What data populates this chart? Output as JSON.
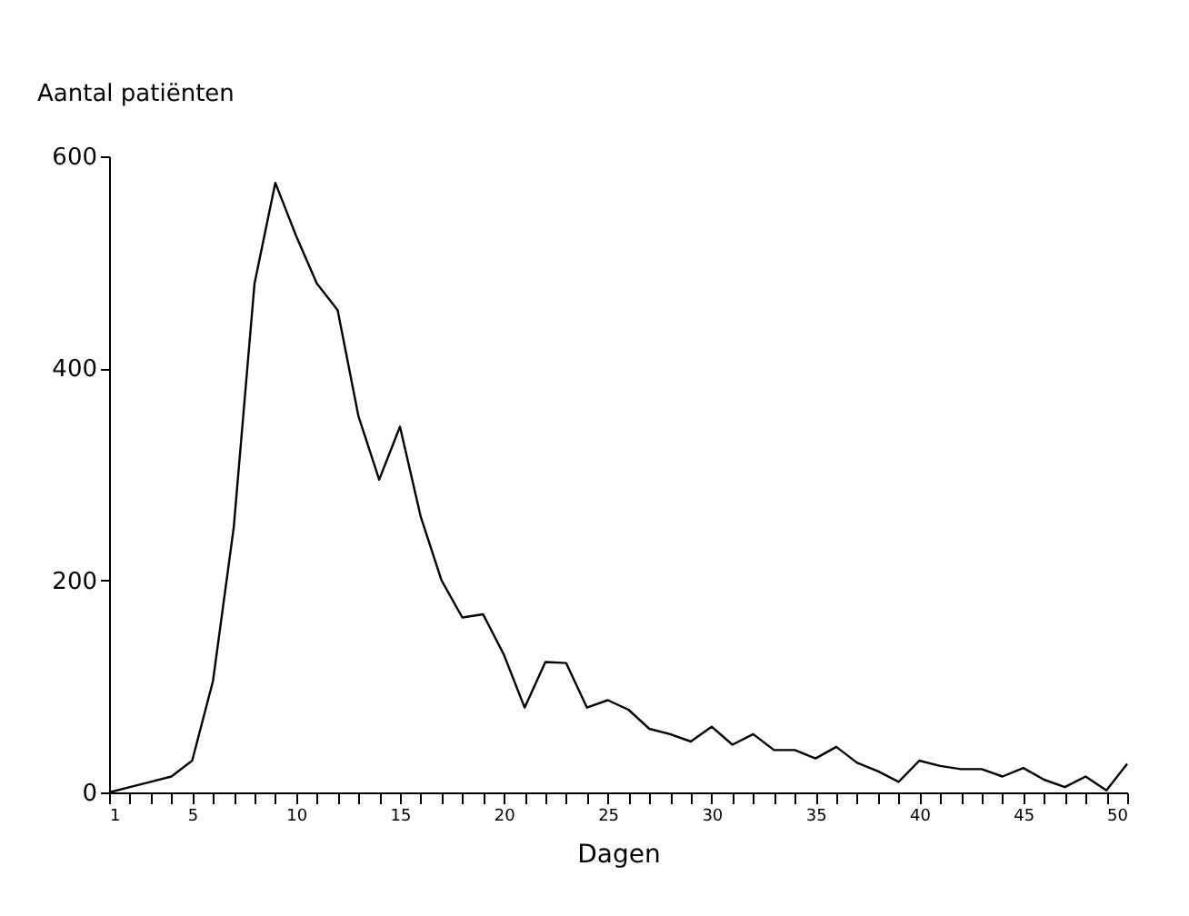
{
  "chart_data": {
    "type": "line",
    "xlabel": "Dagen",
    "ylabel": "Aantal patiënten",
    "x": [
      1,
      2,
      3,
      4,
      5,
      6,
      7,
      8,
      9,
      10,
      11,
      12,
      13,
      14,
      15,
      16,
      17,
      18,
      19,
      20,
      21,
      22,
      23,
      24,
      25,
      26,
      27,
      28,
      29,
      30,
      31,
      32,
      33,
      34,
      35,
      36,
      37,
      38,
      39,
      40,
      41,
      42,
      43,
      44,
      45,
      46,
      47,
      48,
      49,
      50
    ],
    "series": [
      {
        "color": "#000000",
        "values": [
          0,
          5,
          10,
          15,
          30,
          105,
          250,
          480,
          575,
          525,
          480,
          455,
          355,
          295,
          345,
          260,
          200,
          165,
          168,
          130,
          80,
          123,
          122,
          80,
          87,
          78,
          60,
          55,
          48,
          62,
          45,
          55,
          40,
          40,
          32,
          43,
          28,
          20,
          10,
          30,
          25,
          22,
          22,
          15,
          23,
          12,
          5,
          15,
          2,
          27
        ]
      }
    ],
    "xlim": [
      1,
      50
    ],
    "xticks": [
      1,
      {
        "value": 2,
        "label": null
      },
      {
        "value": 3,
        "label": null
      },
      {
        "value": 4,
        "label": null
      },
      5,
      {
        "value": 6,
        "label": null
      },
      {
        "value": 7,
        "label": null
      },
      {
        "value": 8,
        "label": null
      },
      {
        "value": 9,
        "label": null
      },
      10,
      {
        "value": 11,
        "label": null
      },
      {
        "value": 12,
        "label": null
      },
      {
        "value": 13,
        "label": null
      },
      {
        "value": 14,
        "label": null
      },
      15,
      {
        "value": 16,
        "label": null
      },
      {
        "value": 17,
        "label": null
      },
      {
        "value": 18,
        "label": null
      },
      {
        "value": 19,
        "label": null
      },
      20,
      {
        "value": 21,
        "label": null
      },
      {
        "value": 22,
        "label": null
      },
      {
        "value": 23,
        "label": null
      },
      {
        "value": 24,
        "label": null
      },
      25,
      {
        "value": 26,
        "label": null
      },
      {
        "value": 27,
        "label": null
      },
      {
        "value": 28,
        "label": null
      },
      {
        "value": 29,
        "label": null
      },
      30,
      {
        "value": 31,
        "label": null
      },
      {
        "value": 32,
        "label": null
      },
      {
        "value": 33,
        "label": null
      },
      {
        "value": 34,
        "label": null
      },
      35,
      {
        "value": 36,
        "label": null
      },
      {
        "value": 37,
        "label": null
      },
      {
        "value": 38,
        "label": null
      },
      {
        "value": 39,
        "label": null
      },
      40,
      {
        "value": 41,
        "label": null
      },
      {
        "value": 42,
        "label": null
      },
      {
        "value": 43,
        "label": null
      },
      {
        "value": 44,
        "label": null
      },
      45,
      {
        "value": 46,
        "label": null
      },
      {
        "value": 47,
        "label": null
      },
      {
        "value": 48,
        "label": null
      },
      {
        "value": 49,
        "label": null
      },
      50
    ],
    "ylim": [
      0,
      600
    ],
    "yticks": [
      0,
      200,
      400,
      600
    ],
    "grid": false,
    "marker": "none",
    "line_style": "solid"
  }
}
